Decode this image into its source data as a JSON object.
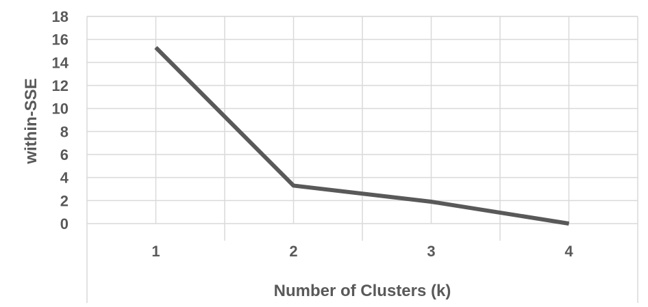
{
  "chart_data": {
    "type": "line",
    "x": [
      1,
      2,
      3,
      4
    ],
    "categories": [
      "1",
      "2",
      "3",
      "4"
    ],
    "series": [
      {
        "values": [
          15.3,
          3.3,
          1.9,
          0.0
        ]
      }
    ],
    "title": "",
    "xlabel": "Number of Clusters (k)",
    "ylabel": "within-SSE",
    "ylim": [
      0,
      18
    ],
    "yticks": [
      "0",
      "2",
      "4",
      "6",
      "8",
      "10",
      "12",
      "14",
      "16",
      "18"
    ],
    "grid": true,
    "legend": "none",
    "colors": {
      "line": "#595959",
      "grid": "#d9d9d9",
      "text": "#595959"
    }
  }
}
